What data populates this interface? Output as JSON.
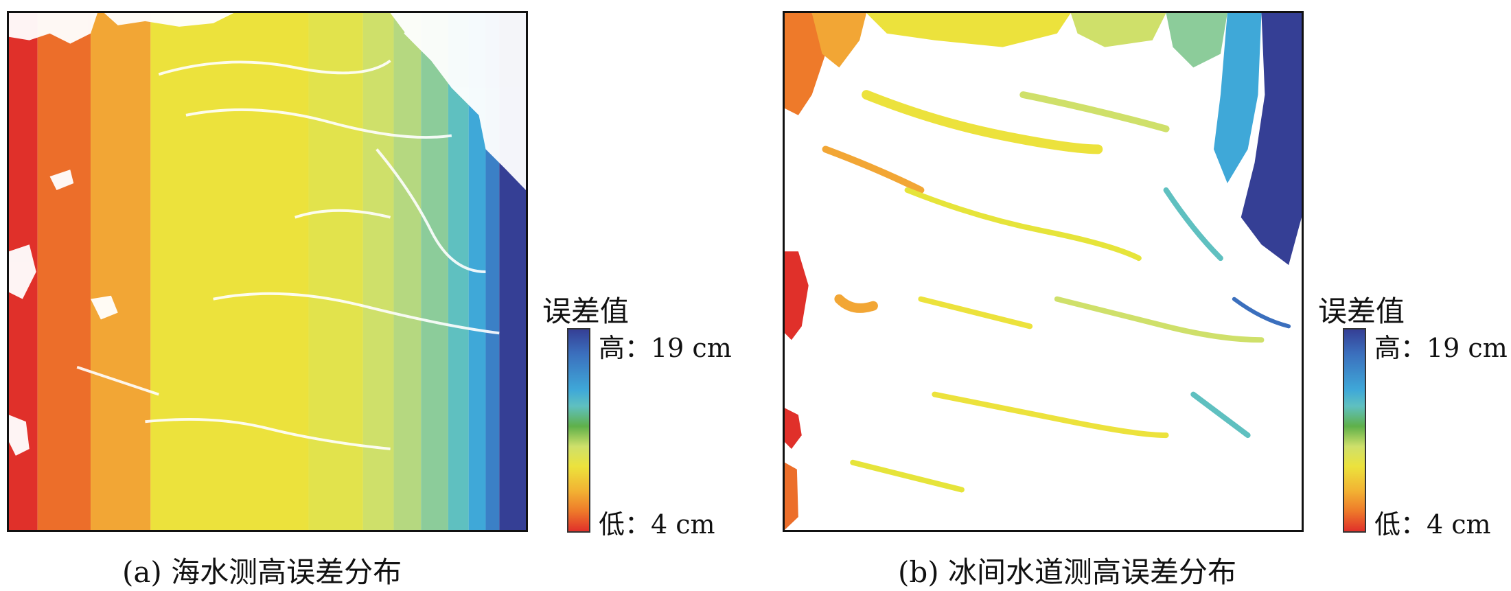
{
  "figure": {
    "panels": [
      {
        "caption": "(a) 海水测高误差分布",
        "colorbar": {
          "title": "误差值",
          "high_label": "高：19 cm",
          "low_label": "低：4 cm"
        }
      },
      {
        "caption": "(b) 冰间水道测高误差分布",
        "colorbar": {
          "title": "误差值",
          "high_label": "高：19 cm",
          "low_label": "低：4 cm"
        }
      }
    ],
    "colorscale": {
      "min_cm": 4,
      "max_cm": 19,
      "colors_low_to_high": [
        "#e0302a",
        "#ee7a2a",
        "#f2b233",
        "#ece23c",
        "#e6e43a",
        "#cfe06a",
        "#9fd08a",
        "#5fc0c0",
        "#3fa8d8",
        "#3b6fbd",
        "#353f95"
      ]
    }
  }
}
